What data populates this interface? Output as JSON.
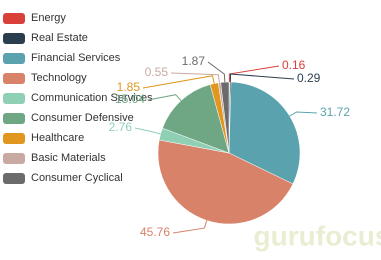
{
  "chart_data": {
    "type": "pie",
    "categories": [
      "Energy",
      "Real Estate",
      "Financial Services",
      "Technology",
      "Communication Services",
      "Consumer Defensive",
      "Healthcare",
      "Basic Materials",
      "Consumer Cyclical"
    ],
    "values": [
      0.16,
      0.29,
      31.72,
      45.76,
      2.76,
      15.04,
      1.85,
      0.55,
      1.87
    ],
    "colors": [
      "#d9403a",
      "#2b3e50",
      "#5aa3ae",
      "#d9826a",
      "#8fd0b5",
      "#6fa784",
      "#e0961f",
      "#c9aaa2",
      "#6b6b6b"
    ],
    "legend": "left",
    "watermark": "gurufocus"
  }
}
